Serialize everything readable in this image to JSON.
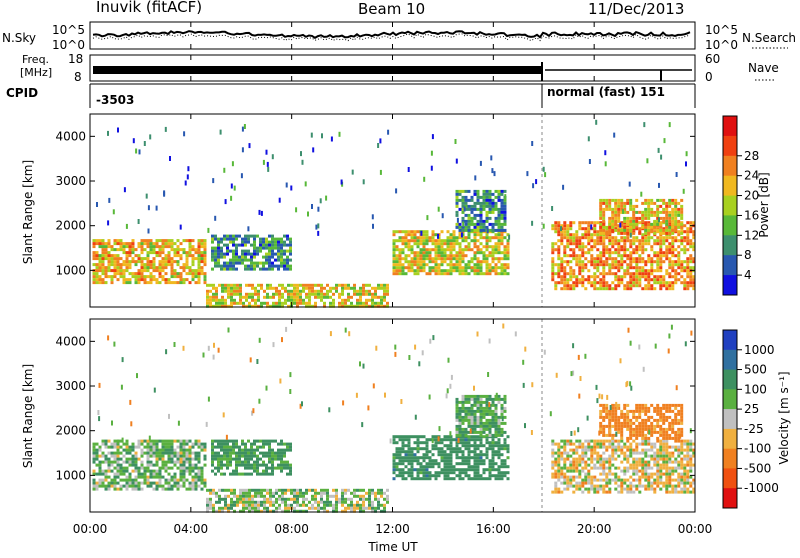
{
  "header": {
    "station": "Inuvik (fitACF)",
    "beam": "Beam 10",
    "date": "11/Dec/2013"
  },
  "noise_panel": {
    "left_label": "N.Sky",
    "right_label": "N.Search",
    "left_ticks": [
      "10^5",
      "10^0"
    ],
    "right_ticks": [
      "10^5",
      "10^0"
    ]
  },
  "freq_panel": {
    "left_label_1": "Freq.",
    "left_label_2": "[MHz]",
    "left_ticks": [
      "18",
      "8"
    ],
    "right_label": "Nave",
    "right_ticks": [
      "60",
      "0"
    ]
  },
  "cpid_panel": {
    "label": "CPID",
    "segments": [
      {
        "start_ut": 0,
        "end_ut": 18,
        "text": "-3503"
      },
      {
        "start_ut": 18,
        "end_ut": 24,
        "text": "normal (fast) 151"
      }
    ]
  },
  "axes": {
    "x_ticks": [
      "00:00",
      "04:00",
      "08:00",
      "12:00",
      "16:00",
      "20:00",
      "00:00"
    ],
    "x_tick_hours": [
      0,
      4,
      8,
      12,
      16,
      20,
      24
    ],
    "xlabel": "Time UT",
    "ylabel": "Slant Range [km]",
    "y_ticks": [
      "1000",
      "2000",
      "3000",
      "4000"
    ],
    "y_tick_values": [
      1000,
      2000,
      3000,
      4000
    ],
    "xlim": [
      0,
      24
    ],
    "ylim": [
      180,
      4500
    ]
  },
  "power_bar": {
    "title": "Power [dB]",
    "tick_labels": [
      "4",
      "8",
      "12",
      "16",
      "20",
      "24",
      "28"
    ],
    "colors": [
      "#1010e0",
      "#2858b0",
      "#3d8f6e",
      "#58b838",
      "#a8d020",
      "#f0b820",
      "#f08020",
      "#f04010",
      "#e01010"
    ]
  },
  "velocity_bar": {
    "title": "Velocity [m s⁻¹]",
    "tick_labels": [
      "1000",
      "500",
      "100",
      "25",
      "-25",
      "-100",
      "-500",
      "-1000"
    ],
    "colors": [
      "#2040c0",
      "#3070a0",
      "#3d9060",
      "#5ab040",
      "#c0c0c0",
      "#f0b040",
      "#f08020",
      "#f05010",
      "#e01010"
    ]
  },
  "chart_data": [
    {
      "type": "heatmap",
      "panel": "power",
      "x_units": "hours UT",
      "y_units": "km",
      "regions": [
        {
          "t": [
            0.1,
            4.6
          ],
          "r": [
            700,
            1700
          ],
          "value_db": 22
        },
        {
          "t": [
            4.6,
            11.8
          ],
          "r": [
            200,
            700
          ],
          "value_db": 20
        },
        {
          "t": [
            4.8,
            8.0
          ],
          "r": [
            1000,
            1800
          ],
          "value_db": 10
        },
        {
          "t": [
            12.0,
            16.6
          ],
          "r": [
            900,
            1900
          ],
          "value_db": 20
        },
        {
          "t": [
            14.5,
            16.5
          ],
          "r": [
            1900,
            2800
          ],
          "value_db": 10
        },
        {
          "t": [
            18.3,
            24.0
          ],
          "r": [
            600,
            2100
          ],
          "value_db": 25
        },
        {
          "t": [
            20.2,
            23.5
          ],
          "r": [
            1800,
            2600
          ],
          "value_db": 22
        }
      ]
    },
    {
      "type": "heatmap",
      "panel": "velocity",
      "x_units": "hours UT",
      "y_units": "km",
      "regions": [
        {
          "t": [
            0.1,
            4.6
          ],
          "r": [
            700,
            1800
          ],
          "value_ms": 60
        },
        {
          "t": [
            4.6,
            11.8
          ],
          "r": [
            200,
            700
          ],
          "value_ms": 40
        },
        {
          "t": [
            4.8,
            8.0
          ],
          "r": [
            1000,
            1800
          ],
          "value_ms": 150
        },
        {
          "t": [
            12.0,
            16.6
          ],
          "r": [
            900,
            1900
          ],
          "value_ms": 300
        },
        {
          "t": [
            14.5,
            16.5
          ],
          "r": [
            1900,
            2800
          ],
          "value_ms": 100
        },
        {
          "t": [
            18.3,
            24.0
          ],
          "r": [
            600,
            1800
          ],
          "value_ms": -30
        },
        {
          "t": [
            20.2,
            23.5
          ],
          "r": [
            1800,
            2600
          ],
          "value_ms": -200
        }
      ]
    }
  ]
}
